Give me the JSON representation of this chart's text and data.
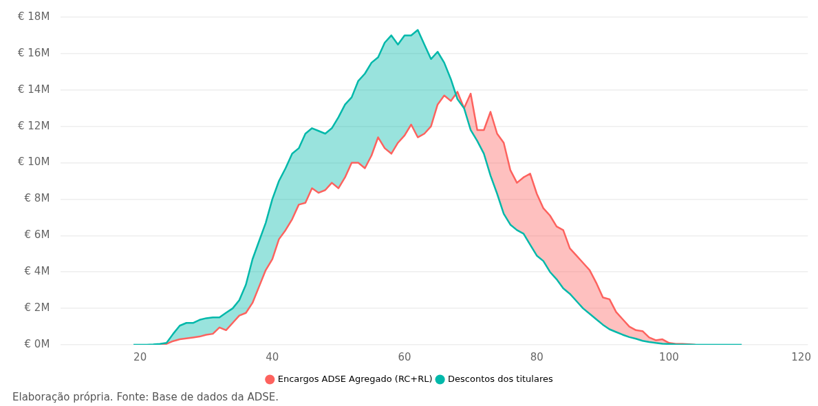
{
  "chart_data": {
    "type": "line",
    "xlim": [
      8,
      121
    ],
    "xticks": [
      20,
      40,
      60,
      80,
      100,
      120
    ],
    "ylim": [
      0,
      18
    ],
    "yticks": [
      {
        "value": 0,
        "label": "€ 0M"
      },
      {
        "value": 2,
        "label": "€ 2M"
      },
      {
        "value": 4,
        "label": "€ 4M"
      },
      {
        "value": 6,
        "label": "€ 6M"
      },
      {
        "value": 8,
        "label": "€ 8M"
      },
      {
        "value": 10,
        "label": "€ 10M"
      },
      {
        "value": 12,
        "label": "€ 12M"
      },
      {
        "value": 14,
        "label": "€ 14M"
      },
      {
        "value": 16,
        "label": "€ 16M"
      },
      {
        "value": 18,
        "label": "€ 18M"
      }
    ],
    "grid": "y",
    "legend": "bottom",
    "marker": "none",
    "line_style": "solid",
    "series": [
      {
        "name": "Encargos ADSE Agregado (RC+RL)",
        "color": "#fd625e",
        "x": [
          22,
          23,
          24,
          25,
          26,
          27,
          28,
          29,
          30,
          31,
          32,
          33,
          34,
          35,
          36,
          37,
          38,
          39,
          40,
          41,
          42,
          43,
          44,
          45,
          46,
          47,
          48,
          49,
          50,
          51,
          52,
          53,
          54,
          55,
          56,
          57,
          58,
          59,
          60,
          61,
          62,
          63,
          64,
          65,
          66,
          67,
          68,
          69,
          70,
          71,
          72,
          73,
          74,
          75,
          76,
          77,
          78,
          79,
          80,
          81,
          82,
          83,
          84,
          85,
          86,
          87,
          88,
          89,
          90,
          91,
          92,
          93,
          94,
          95,
          96,
          97,
          98,
          99,
          100,
          101,
          102,
          103,
          104
        ],
        "values": [
          0,
          0,
          0.05,
          0.2,
          0.3,
          0.35,
          0.4,
          0.45,
          0.55,
          0.6,
          0.95,
          0.8,
          1.2,
          1.6,
          1.75,
          2.3,
          3.2,
          4.1,
          4.7,
          5.8,
          6.3,
          6.9,
          7.7,
          7.8,
          8.6,
          8.35,
          8.5,
          8.9,
          8.6,
          9.2,
          10,
          10,
          9.7,
          10.4,
          11.4,
          10.8,
          10.5,
          11.1,
          11.5,
          12.1,
          11.4,
          11.6,
          12,
          13.2,
          13.7,
          13.4,
          13.9,
          13,
          13.8,
          11.8,
          11.8,
          12.8,
          11.6,
          11.1,
          9.6,
          8.9,
          9.2,
          9.4,
          8.3,
          7.5,
          7.1,
          6.5,
          6.3,
          5.3,
          4.9,
          4.5,
          4.1,
          3.4,
          2.6,
          2.5,
          1.8,
          1.4,
          1,
          0.8,
          0.75,
          0.4,
          0.25,
          0.3,
          0.1,
          0.05,
          0.05,
          0.03,
          0
        ],
        "lower": [
          null,
          null,
          null,
          null,
          null,
          null,
          null,
          null,
          null,
          null,
          null,
          null,
          null,
          null,
          null,
          null,
          null,
          null,
          null,
          null,
          null,
          null,
          null,
          null,
          null,
          null,
          null,
          null,
          null,
          null,
          null,
          null,
          null,
          null,
          null,
          null,
          null,
          null,
          null,
          null,
          null,
          null,
          null,
          null,
          null,
          14.6,
          13.5,
          13,
          11.8,
          11.2,
          10.5,
          9.3,
          8.3,
          7.2,
          6.6,
          6.3,
          6.1,
          5.5,
          4.9,
          4.6,
          4,
          3.6,
          3.1,
          2.8,
          2.4,
          2,
          1.7,
          1.4,
          1.1,
          0.85,
          0.7,
          0.55,
          0.42,
          0.33,
          0.22,
          0.15,
          0.1,
          0.06,
          0.04,
          0.02,
          0.01,
          0.01,
          0
        ],
        "upper": [
          null,
          null,
          null,
          null,
          null,
          null,
          null,
          null,
          null,
          null,
          null,
          null,
          null,
          null,
          null,
          null,
          null,
          null,
          null,
          null,
          null,
          null,
          null,
          null,
          null,
          null,
          null,
          null,
          null,
          null,
          null,
          null,
          null,
          null,
          null,
          null,
          null,
          null,
          null,
          null,
          null,
          null,
          null,
          null,
          null,
          13.4,
          13.9,
          13,
          13.8,
          11.8,
          11.8,
          12.8,
          11.6,
          11.1,
          9.6,
          8.9,
          9.2,
          9.4,
          8.3,
          7.5,
          7.1,
          6.5,
          6.3,
          5.3,
          4.9,
          4.5,
          4.1,
          3.4,
          2.6,
          2.5,
          1.8,
          1.4,
          1,
          0.8,
          0.75,
          0.4,
          0.25,
          0.3,
          0.1,
          0.05,
          0.05,
          0.03,
          0
        ]
      },
      {
        "name": "Descontos dos titulares",
        "color": "#01b8aa",
        "x": [
          19,
          20,
          21,
          22,
          23,
          24,
          25,
          26,
          27,
          28,
          29,
          30,
          31,
          32,
          33,
          34,
          35,
          36,
          37,
          38,
          39,
          40,
          41,
          42,
          43,
          44,
          45,
          46,
          47,
          48,
          49,
          50,
          51,
          52,
          53,
          54,
          55,
          56,
          57,
          58,
          59,
          60,
          61,
          62,
          63,
          64,
          65,
          66,
          67,
          68,
          69,
          70,
          71,
          72,
          73,
          74,
          75,
          76,
          77,
          78,
          79,
          80,
          81,
          82,
          83,
          84,
          85,
          86,
          87,
          88,
          89,
          90,
          91,
          92,
          93,
          94,
          95,
          96,
          97,
          98,
          99,
          100,
          101,
          102,
          103,
          104,
          105,
          106,
          107,
          108,
          109,
          110,
          111
        ],
        "values": [
          0,
          0,
          0,
          0.02,
          0.05,
          0.1,
          0.6,
          1.05,
          1.2,
          1.2,
          1.37,
          1.46,
          1.5,
          1.5,
          1.76,
          2,
          2.45,
          3.3,
          4.7,
          5.7,
          6.7,
          8,
          9,
          9.7,
          10.5,
          10.8,
          11.6,
          11.9,
          11.75,
          11.6,
          11.9,
          12.5,
          13.2,
          13.6,
          14.5,
          14.9,
          15.5,
          15.8,
          16.6,
          17,
          16.5,
          17,
          17,
          17.3,
          16.5,
          15.7,
          16.1,
          15.5,
          14.6,
          13.5,
          13,
          11.8,
          11.2,
          10.5,
          9.3,
          8.3,
          7.2,
          6.6,
          6.3,
          6.1,
          5.5,
          4.9,
          4.6,
          4,
          3.6,
          3.1,
          2.8,
          2.4,
          2,
          1.7,
          1.4,
          1.1,
          0.85,
          0.7,
          0.55,
          0.42,
          0.33,
          0.22,
          0.15,
          0.1,
          0.06,
          0.04,
          0.02,
          0.01,
          0.01,
          0,
          0,
          0,
          0,
          0,
          0,
          0,
          0
        ],
        "lower": [
          0,
          0,
          0,
          0,
          0,
          0.05,
          0.2,
          0.3,
          0.35,
          0.4,
          0.45,
          0.55,
          0.6,
          0.95,
          0.8,
          1.2,
          1.6,
          1.75,
          2.3,
          3.2,
          4.1,
          4.7,
          5.8,
          6.3,
          6.9,
          7.7,
          7.8,
          8.6,
          8.35,
          8.5,
          8.9,
          8.6,
          9.2,
          10,
          10,
          9.7,
          10.4,
          11.4,
          10.8,
          10.5,
          11.1,
          11.5,
          12.1,
          11.4,
          11.6,
          12,
          13.2,
          13.7,
          13.4,
          13.9,
          13,
          null,
          null,
          null,
          null,
          null,
          null,
          null,
          null,
          null,
          null,
          null,
          null,
          null,
          null,
          null,
          null,
          null,
          null,
          null,
          null,
          null,
          null,
          null,
          null,
          null,
          null,
          null,
          null,
          null,
          null,
          null,
          null,
          null,
          null,
          null,
          null,
          null,
          null,
          null,
          null,
          null,
          null
        ],
        "upper": [
          0,
          0,
          0,
          0.02,
          0.05,
          0.1,
          0.6,
          1.05,
          1.2,
          1.2,
          1.37,
          1.46,
          1.5,
          1.5,
          1.76,
          2,
          2.45,
          3.3,
          4.7,
          5.7,
          6.7,
          8,
          9,
          9.7,
          10.5,
          10.8,
          11.6,
          11.9,
          11.75,
          11.6,
          11.9,
          12.5,
          13.2,
          13.6,
          14.5,
          14.9,
          15.5,
          15.8,
          16.6,
          17,
          16.5,
          17,
          17,
          17.3,
          16.5,
          15.7,
          16.1,
          15.5,
          14.6,
          13.5,
          13,
          null,
          null,
          null,
          null,
          null,
          null,
          null,
          null,
          null,
          null,
          null,
          null,
          null,
          null,
          null,
          null,
          null,
          null,
          null,
          null,
          null,
          null,
          null,
          null,
          null,
          null,
          null,
          null,
          null,
          null,
          null,
          null,
          null,
          null,
          null,
          null,
          null,
          null,
          null,
          null,
          null,
          null
        ]
      }
    ],
    "annotations": [
      "Elaboração própria.  Fonte: Base de dados da ADSE."
    ]
  }
}
